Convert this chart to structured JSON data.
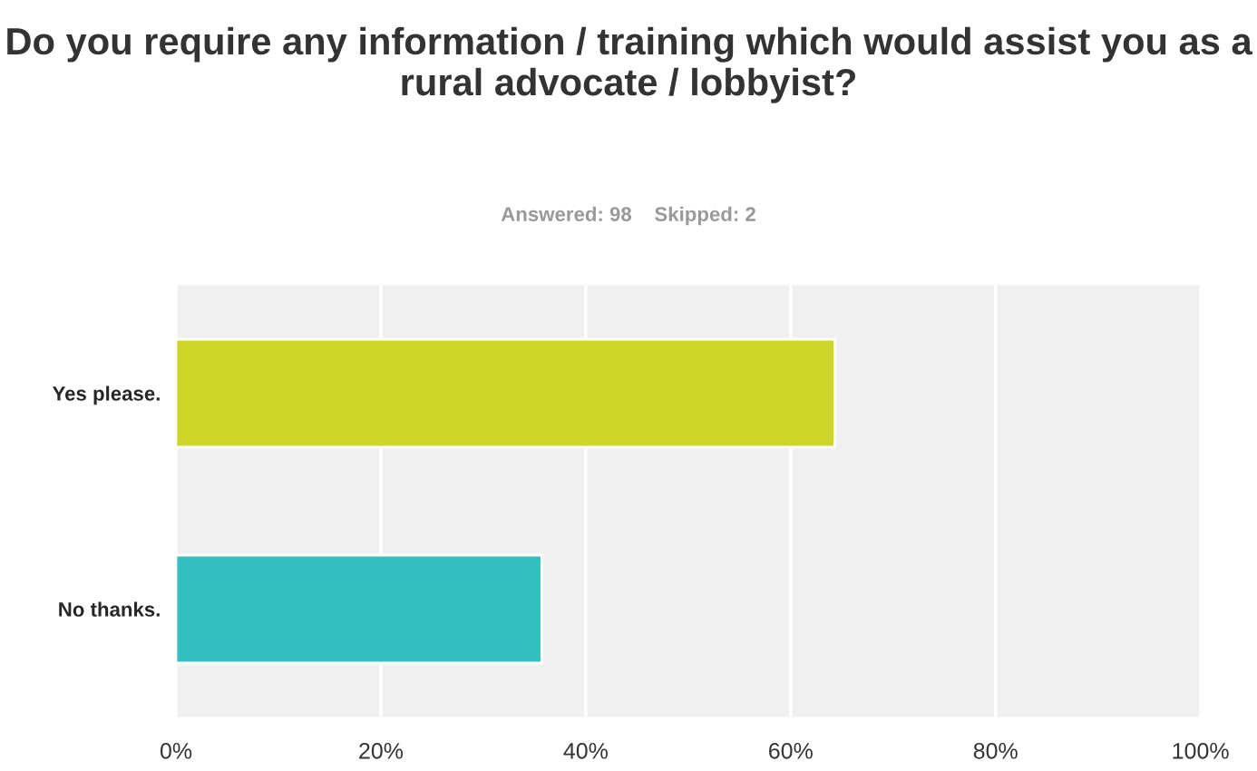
{
  "chart_data": {
    "type": "bar",
    "orientation": "horizontal",
    "title": "Do you require any information / training which would assist you as a rural advocate / lobbyist?",
    "subtitle": "Answered: 98    Skipped: 2",
    "categories": [
      "Yes please.",
      "No thanks."
    ],
    "values": [
      64.3,
      35.7
    ],
    "colors": [
      "#cdd629",
      "#34bebe"
    ],
    "xlim": [
      0,
      100
    ],
    "xticks": [
      {
        "value": 0,
        "label": "0%"
      },
      {
        "value": 20,
        "label": "20%"
      },
      {
        "value": 40,
        "label": "40%"
      },
      {
        "value": 60,
        "label": "60%"
      },
      {
        "value": 80,
        "label": "80%"
      },
      {
        "value": 100,
        "label": "100%"
      }
    ],
    "grid": "x"
  }
}
